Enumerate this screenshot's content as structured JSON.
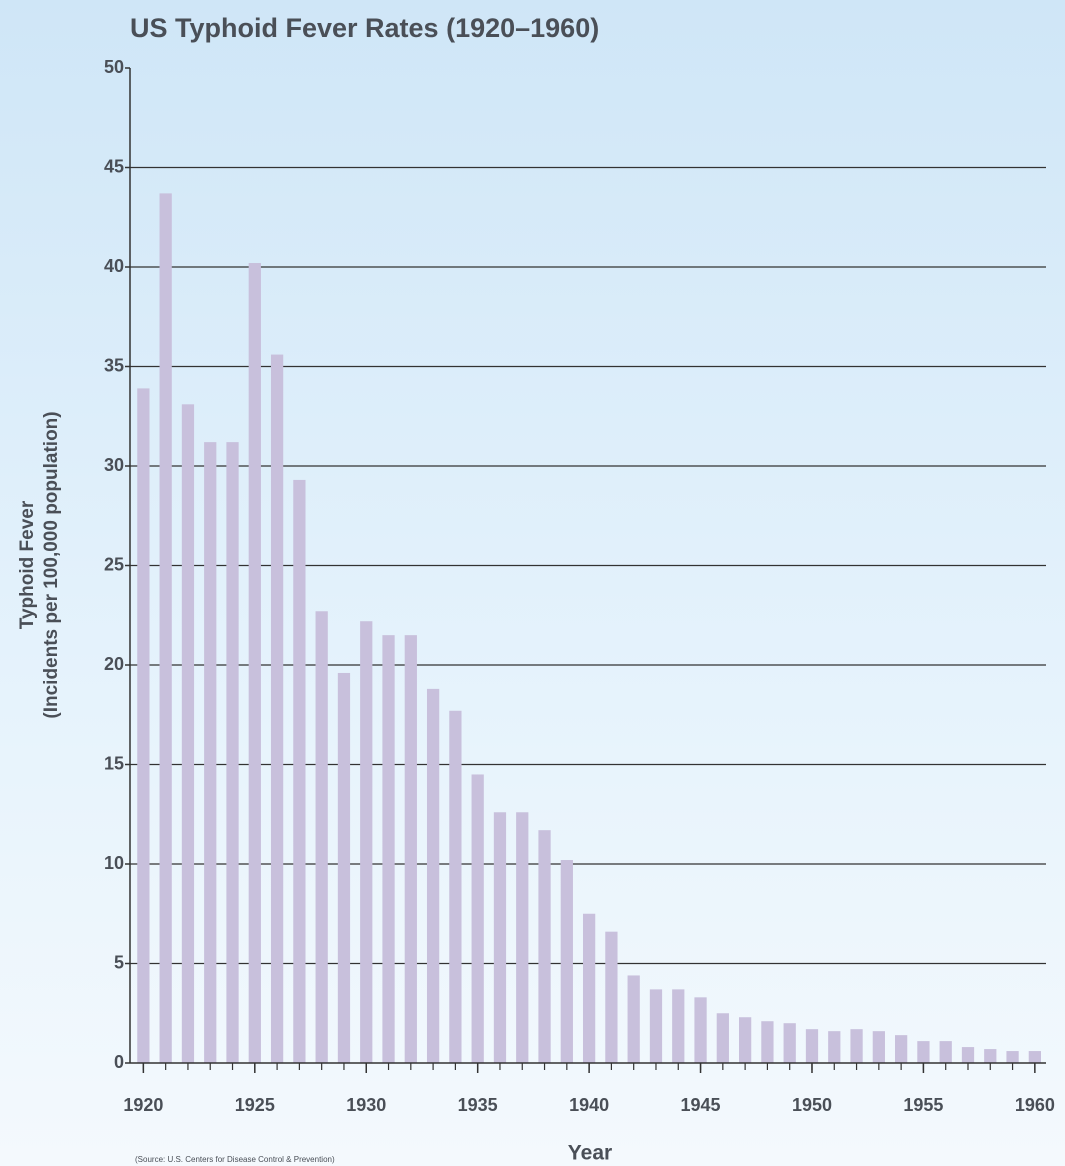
{
  "chart_data": {
    "type": "bar",
    "title": "US Typhoid Fever Rates (1920–1960)",
    "xlabel": "Year",
    "ylabel": [
      "Typhoid Fever",
      "(Incidents per 100,000 population)"
    ],
    "source": "(Source: U.S. Centers for Disease Control & Prevention)",
    "x": [
      1920,
      1921,
      1922,
      1923,
      1924,
      1925,
      1926,
      1927,
      1928,
      1929,
      1930,
      1931,
      1932,
      1933,
      1934,
      1935,
      1936,
      1937,
      1938,
      1939,
      1940,
      1941,
      1942,
      1943,
      1944,
      1945,
      1946,
      1947,
      1948,
      1949,
      1950,
      1951,
      1952,
      1953,
      1954,
      1955,
      1956,
      1957,
      1958,
      1959,
      1960
    ],
    "values": [
      33.9,
      43.7,
      33.1,
      31.2,
      31.2,
      40.2,
      35.6,
      29.3,
      22.7,
      19.6,
      22.2,
      21.5,
      21.5,
      18.8,
      17.7,
      14.5,
      12.6,
      12.6,
      11.7,
      10.2,
      7.5,
      6.6,
      4.4,
      3.7,
      3.7,
      3.3,
      2.5,
      2.3,
      2.1,
      2.0,
      1.7,
      1.6,
      1.7,
      1.6,
      1.4,
      1.1,
      1.1,
      0.8,
      0.7,
      0.6,
      0.6
    ],
    "color": "#c8c0dc",
    "xlim": [
      1919.4,
      1960.5
    ],
    "xticks": [
      1920,
      1925,
      1930,
      1935,
      1940,
      1945,
      1950,
      1955,
      1960
    ],
    "ylim": [
      0,
      50
    ],
    "yticks": [
      0,
      5,
      10,
      15,
      20,
      25,
      30,
      35,
      40,
      45,
      50
    ],
    "grid": true
  }
}
